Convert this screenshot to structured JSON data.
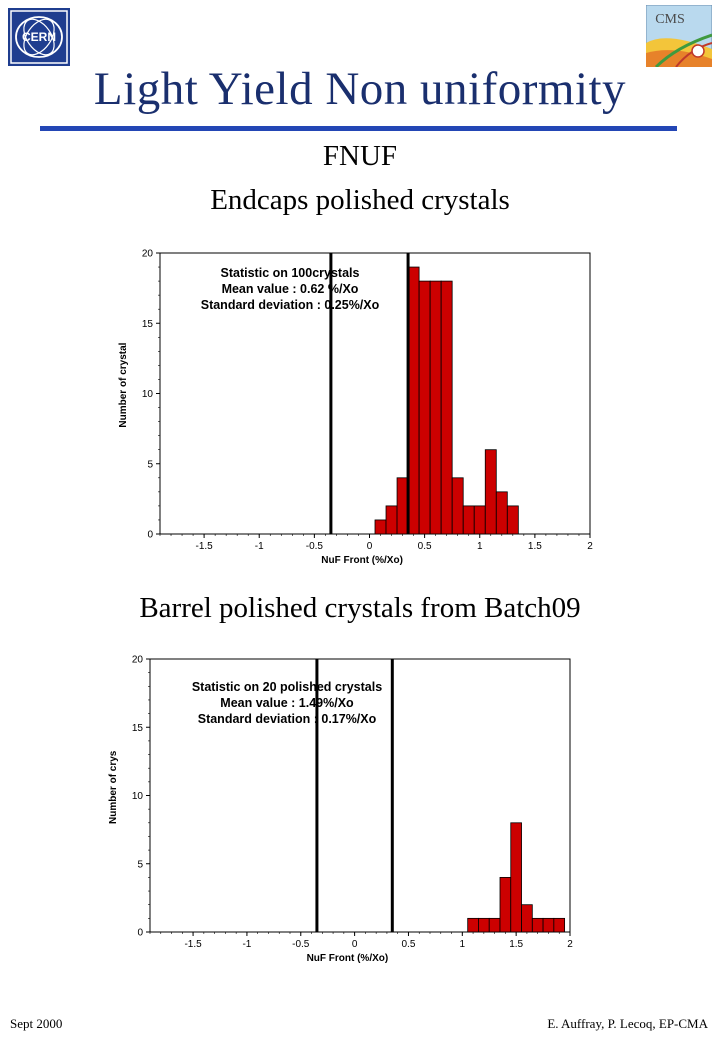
{
  "header": {
    "title": "Light Yield Non uniformity",
    "subtitle": "FNUF",
    "cern_logo_text": "CERN",
    "cms_logo_text": "CMS"
  },
  "chart_data": [
    {
      "type": "bar",
      "heading": "Endcaps polished crystals",
      "xlabel": "NuF Front (%/Xo)",
      "ylabel": "Number of crystal",
      "xlim": [
        -1.9,
        2.0
      ],
      "ylim": [
        0,
        20
      ],
      "xticks": [
        -1.5,
        -1,
        -0.5,
        0,
        0.5,
        1,
        1.5,
        2
      ],
      "xtick_labels": [
        "-1.5",
        "-1",
        "-0.5",
        "0",
        "0.5",
        "1",
        "1.5",
        "2"
      ],
      "yticks": [
        0,
        5,
        10,
        15,
        20
      ],
      "ytick_labels": [
        "0",
        "5",
        "10",
        "15",
        "20"
      ],
      "bin_width": 0.1,
      "bin_starts": [
        0.05,
        0.15,
        0.25,
        0.35,
        0.45,
        0.55,
        0.65,
        0.75,
        0.85,
        0.95,
        1.05,
        1.15,
        1.25
      ],
      "values": [
        1,
        2,
        4,
        19,
        18,
        18,
        18,
        4,
        2,
        2,
        6,
        3,
        2
      ],
      "vlines": [
        -0.35,
        0.35
      ],
      "annotations": [
        "Statistic on 100crystals",
        "Mean value : 0.62 %/Xo",
        "Standard deviation : 0.25%/Xo"
      ],
      "grid": false,
      "bar_color": "#cc0000"
    },
    {
      "type": "bar",
      "heading": "Barrel polished crystals from Batch09",
      "xlabel": "NuF Front (%/Xo)",
      "ylabel": "Number of crys",
      "xlim": [
        -1.9,
        2.0
      ],
      "ylim": [
        0,
        20
      ],
      "xticks": [
        -1.5,
        -1,
        -0.5,
        0,
        0.5,
        1,
        1.5,
        2
      ],
      "xtick_labels": [
        "-1.5",
        "-1",
        "-0.5",
        "0",
        "0.5",
        "1",
        "1.5",
        "2"
      ],
      "yticks": [
        0,
        5,
        10,
        15,
        20
      ],
      "ytick_labels": [
        "0",
        "5",
        "10",
        "15",
        "20"
      ],
      "bin_width": 0.1,
      "bin_starts": [
        1.05,
        1.15,
        1.25,
        1.35,
        1.45,
        1.55,
        1.65,
        1.75,
        1.85
      ],
      "values": [
        1,
        1,
        1,
        4,
        8,
        2,
        1,
        1,
        1
      ],
      "vlines": [
        -0.35,
        0.35
      ],
      "annotations": [
        "Statistic on 20 polished crystals",
        "Mean value : 1.49%/Xo",
        "Standard deviation : 0.17%/Xo"
      ],
      "grid": false,
      "bar_color": "#cc0000"
    }
  ],
  "footer": {
    "left": "Sept 2000",
    "right": "E. Auffray, P. Lecoq,  EP-CMA"
  }
}
